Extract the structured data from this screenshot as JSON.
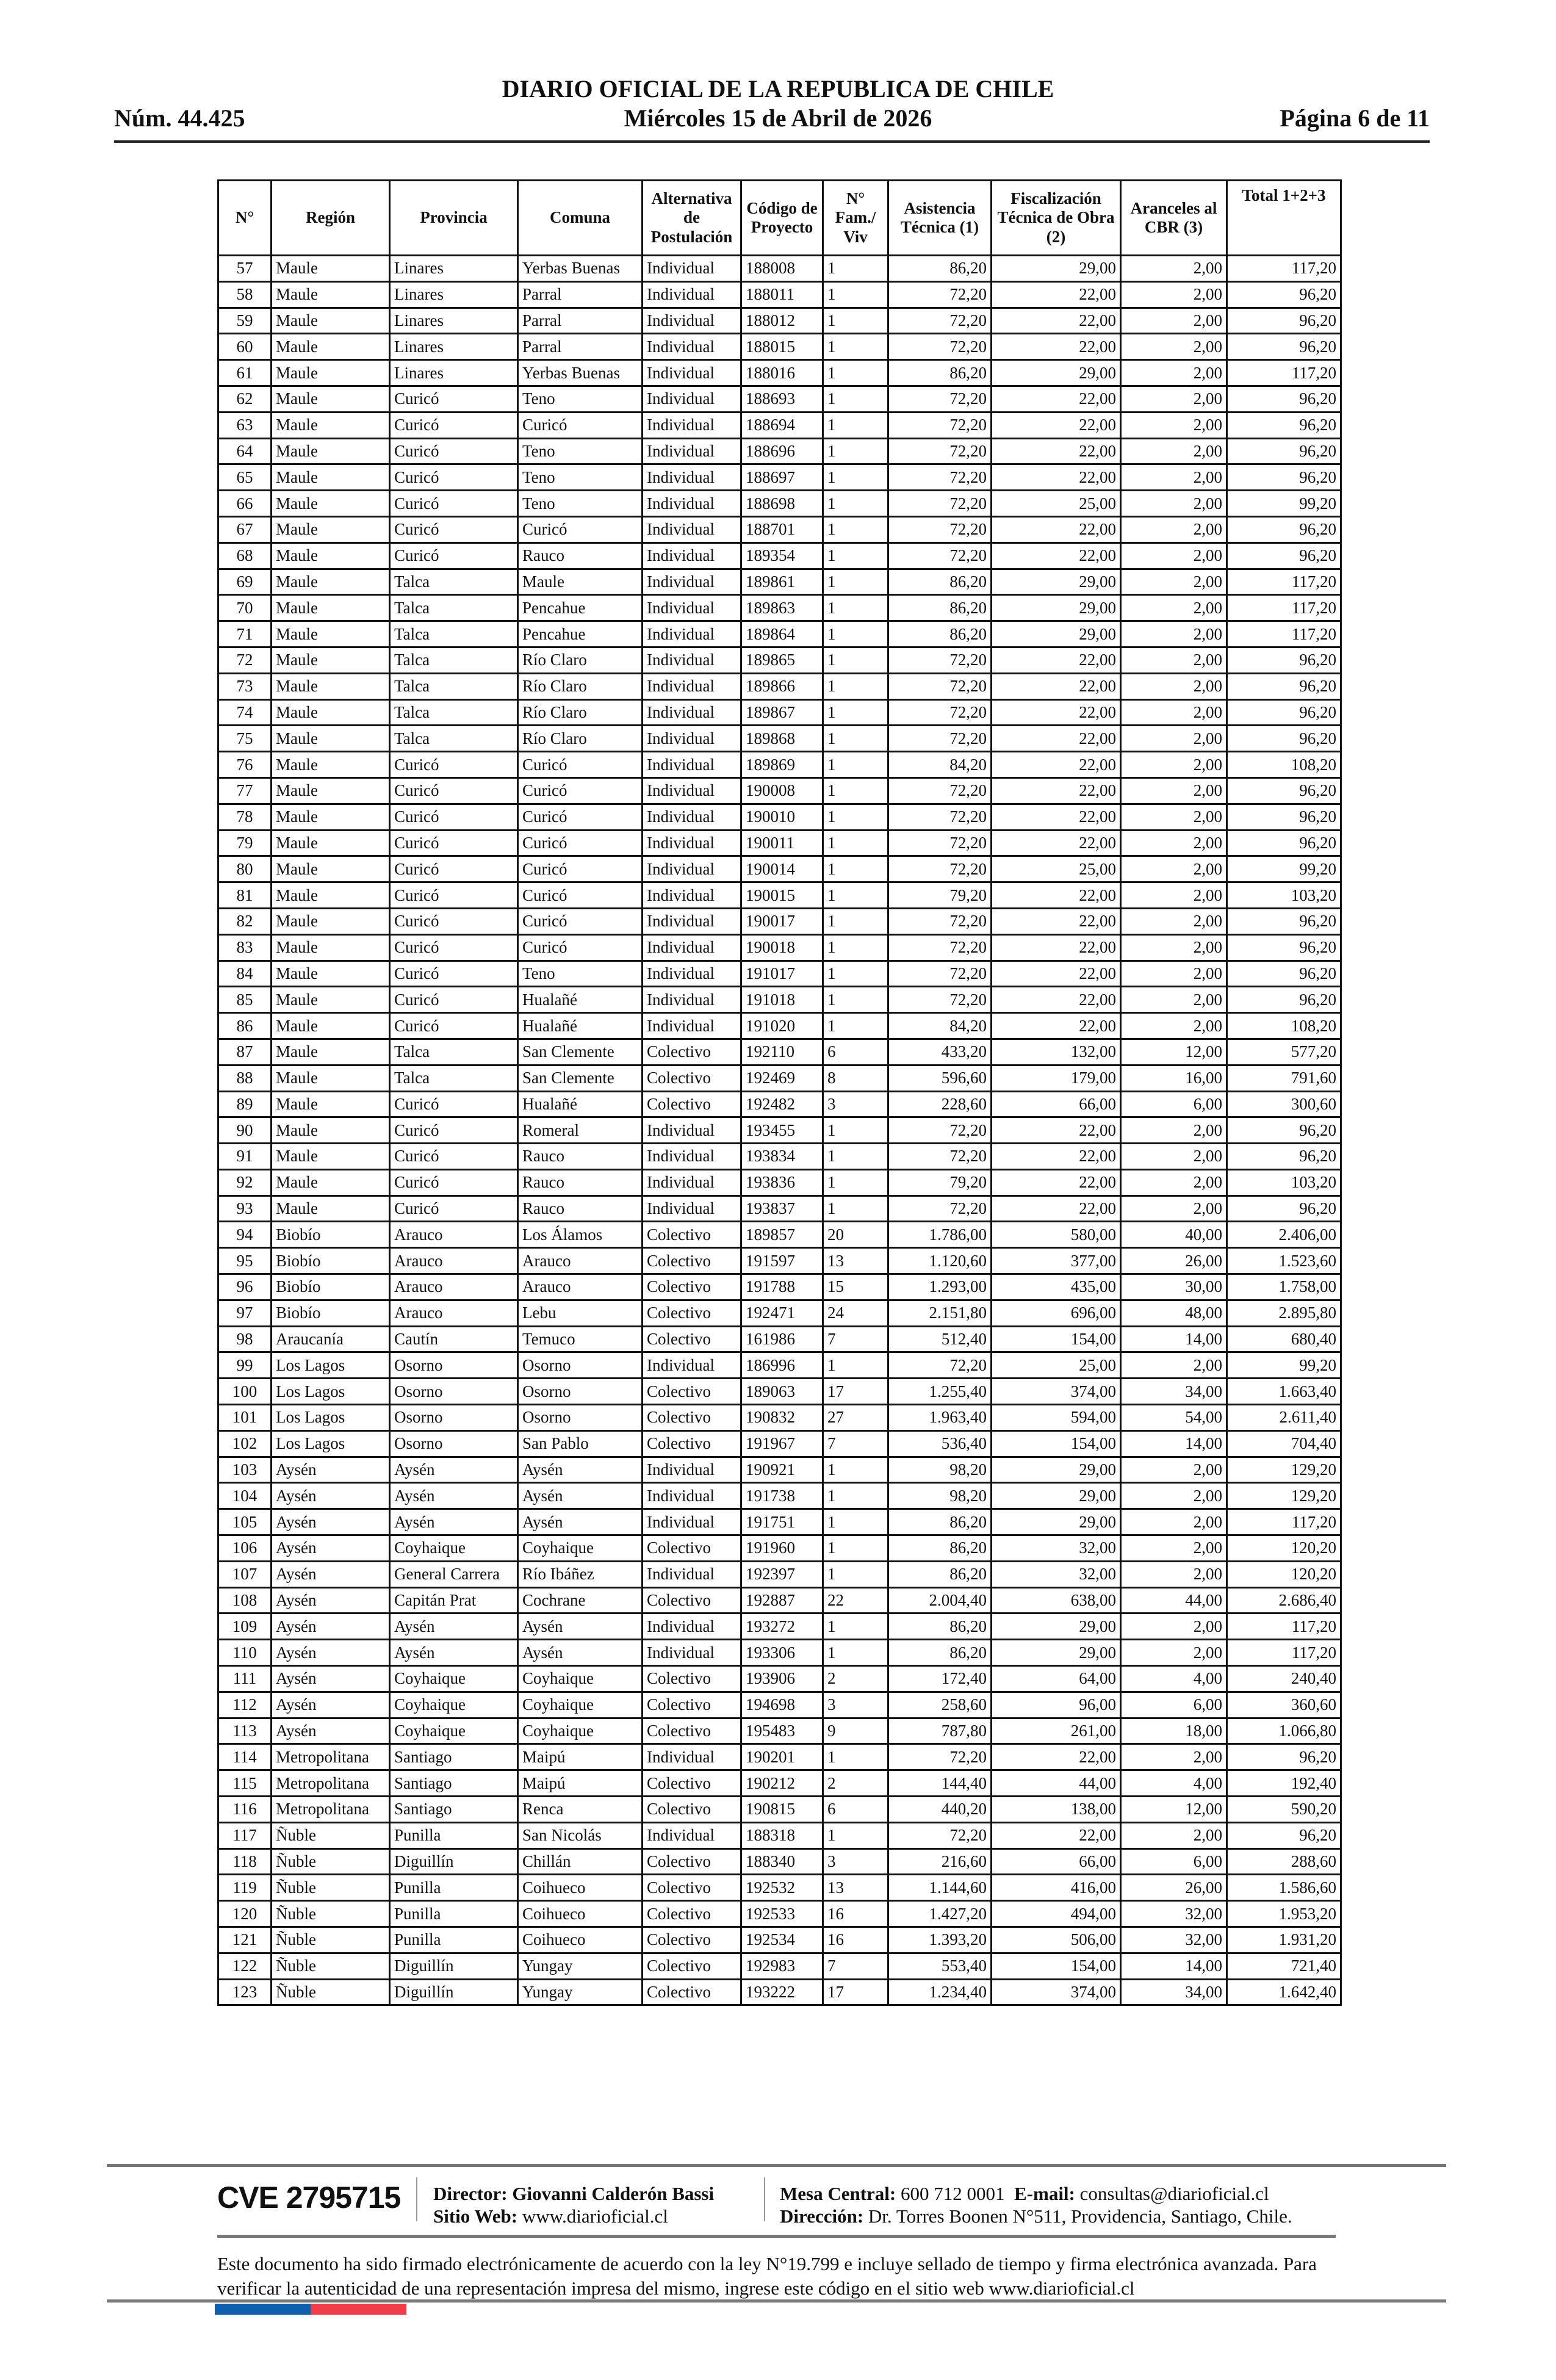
{
  "header": {
    "title": "DIARIO OFICIAL DE LA REPUBLICA DE CHILE",
    "number": "Núm. 44.425",
    "date": "Miércoles 15 de Abril de 2026",
    "page": "Página 6 de 11"
  },
  "table": {
    "columns": [
      "N°",
      "Región",
      "Provincia",
      "Comuna",
      "Alternativa de Postulación",
      "Código de Proyecto",
      "N° Fam./ Viv",
      "Asistencia Técnica (1)",
      "Fiscalización Técnica de Obra (2)",
      "Aranceles al CBR (3)",
      "Total 1+2+3"
    ],
    "rows": [
      [
        "57",
        "Maule",
        "Linares",
        "Yerbas Buenas",
        "Individual",
        "188008",
        "1",
        "86,20",
        "29,00",
        "2,00",
        "117,20"
      ],
      [
        "58",
        "Maule",
        "Linares",
        "Parral",
        "Individual",
        "188011",
        "1",
        "72,20",
        "22,00",
        "2,00",
        "96,20"
      ],
      [
        "59",
        "Maule",
        "Linares",
        "Parral",
        "Individual",
        "188012",
        "1",
        "72,20",
        "22,00",
        "2,00",
        "96,20"
      ],
      [
        "60",
        "Maule",
        "Linares",
        "Parral",
        "Individual",
        "188015",
        "1",
        "72,20",
        "22,00",
        "2,00",
        "96,20"
      ],
      [
        "61",
        "Maule",
        "Linares",
        "Yerbas Buenas",
        "Individual",
        "188016",
        "1",
        "86,20",
        "29,00",
        "2,00",
        "117,20"
      ],
      [
        "62",
        "Maule",
        "Curicó",
        "Teno",
        "Individual",
        "188693",
        "1",
        "72,20",
        "22,00",
        "2,00",
        "96,20"
      ],
      [
        "63",
        "Maule",
        "Curicó",
        "Curicó",
        "Individual",
        "188694",
        "1",
        "72,20",
        "22,00",
        "2,00",
        "96,20"
      ],
      [
        "64",
        "Maule",
        "Curicó",
        "Teno",
        "Individual",
        "188696",
        "1",
        "72,20",
        "22,00",
        "2,00",
        "96,20"
      ],
      [
        "65",
        "Maule",
        "Curicó",
        "Teno",
        "Individual",
        "188697",
        "1",
        "72,20",
        "22,00",
        "2,00",
        "96,20"
      ],
      [
        "66",
        "Maule",
        "Curicó",
        "Teno",
        "Individual",
        "188698",
        "1",
        "72,20",
        "25,00",
        "2,00",
        "99,20"
      ],
      [
        "67",
        "Maule",
        "Curicó",
        "Curicó",
        "Individual",
        "188701",
        "1",
        "72,20",
        "22,00",
        "2,00",
        "96,20"
      ],
      [
        "68",
        "Maule",
        "Curicó",
        "Rauco",
        "Individual",
        "189354",
        "1",
        "72,20",
        "22,00",
        "2,00",
        "96,20"
      ],
      [
        "69",
        "Maule",
        "Talca",
        "Maule",
        "Individual",
        "189861",
        "1",
        "86,20",
        "29,00",
        "2,00",
        "117,20"
      ],
      [
        "70",
        "Maule",
        "Talca",
        "Pencahue",
        "Individual",
        "189863",
        "1",
        "86,20",
        "29,00",
        "2,00",
        "117,20"
      ],
      [
        "71",
        "Maule",
        "Talca",
        "Pencahue",
        "Individual",
        "189864",
        "1",
        "86,20",
        "29,00",
        "2,00",
        "117,20"
      ],
      [
        "72",
        "Maule",
        "Talca",
        "Río Claro",
        "Individual",
        "189865",
        "1",
        "72,20",
        "22,00",
        "2,00",
        "96,20"
      ],
      [
        "73",
        "Maule",
        "Talca",
        "Río Claro",
        "Individual",
        "189866",
        "1",
        "72,20",
        "22,00",
        "2,00",
        "96,20"
      ],
      [
        "74",
        "Maule",
        "Talca",
        "Río Claro",
        "Individual",
        "189867",
        "1",
        "72,20",
        "22,00",
        "2,00",
        "96,20"
      ],
      [
        "75",
        "Maule",
        "Talca",
        "Río Claro",
        "Individual",
        "189868",
        "1",
        "72,20",
        "22,00",
        "2,00",
        "96,20"
      ],
      [
        "76",
        "Maule",
        "Curicó",
        "Curicó",
        "Individual",
        "189869",
        "1",
        "84,20",
        "22,00",
        "2,00",
        "108,20"
      ],
      [
        "77",
        "Maule",
        "Curicó",
        "Curicó",
        "Individual",
        "190008",
        "1",
        "72,20",
        "22,00",
        "2,00",
        "96,20"
      ],
      [
        "78",
        "Maule",
        "Curicó",
        "Curicó",
        "Individual",
        "190010",
        "1",
        "72,20",
        "22,00",
        "2,00",
        "96,20"
      ],
      [
        "79",
        "Maule",
        "Curicó",
        "Curicó",
        "Individual",
        "190011",
        "1",
        "72,20",
        "22,00",
        "2,00",
        "96,20"
      ],
      [
        "80",
        "Maule",
        "Curicó",
        "Curicó",
        "Individual",
        "190014",
        "1",
        "72,20",
        "25,00",
        "2,00",
        "99,20"
      ],
      [
        "81",
        "Maule",
        "Curicó",
        "Curicó",
        "Individual",
        "190015",
        "1",
        "79,20",
        "22,00",
        "2,00",
        "103,20"
      ],
      [
        "82",
        "Maule",
        "Curicó",
        "Curicó",
        "Individual",
        "190017",
        "1",
        "72,20",
        "22,00",
        "2,00",
        "96,20"
      ],
      [
        "83",
        "Maule",
        "Curicó",
        "Curicó",
        "Individual",
        "190018",
        "1",
        "72,20",
        "22,00",
        "2,00",
        "96,20"
      ],
      [
        "84",
        "Maule",
        "Curicó",
        "Teno",
        "Individual",
        "191017",
        "1",
        "72,20",
        "22,00",
        "2,00",
        "96,20"
      ],
      [
        "85",
        "Maule",
        "Curicó",
        "Hualañé",
        "Individual",
        "191018",
        "1",
        "72,20",
        "22,00",
        "2,00",
        "96,20"
      ],
      [
        "86",
        "Maule",
        "Curicó",
        "Hualañé",
        "Individual",
        "191020",
        "1",
        "84,20",
        "22,00",
        "2,00",
        "108,20"
      ],
      [
        "87",
        "Maule",
        "Talca",
        "San Clemente",
        "Colectivo",
        "192110",
        "6",
        "433,20",
        "132,00",
        "12,00",
        "577,20"
      ],
      [
        "88",
        "Maule",
        "Talca",
        "San Clemente",
        "Colectivo",
        "192469",
        "8",
        "596,60",
        "179,00",
        "16,00",
        "791,60"
      ],
      [
        "89",
        "Maule",
        "Curicó",
        "Hualañé",
        "Colectivo",
        "192482",
        "3",
        "228,60",
        "66,00",
        "6,00",
        "300,60"
      ],
      [
        "90",
        "Maule",
        "Curicó",
        "Romeral",
        "Individual",
        "193455",
        "1",
        "72,20",
        "22,00",
        "2,00",
        "96,20"
      ],
      [
        "91",
        "Maule",
        "Curicó",
        "Rauco",
        "Individual",
        "193834",
        "1",
        "72,20",
        "22,00",
        "2,00",
        "96,20"
      ],
      [
        "92",
        "Maule",
        "Curicó",
        "Rauco",
        "Individual",
        "193836",
        "1",
        "79,20",
        "22,00",
        "2,00",
        "103,20"
      ],
      [
        "93",
        "Maule",
        "Curicó",
        "Rauco",
        "Individual",
        "193837",
        "1",
        "72,20",
        "22,00",
        "2,00",
        "96,20"
      ],
      [
        "94",
        "Biobío",
        "Arauco",
        "Los Álamos",
        "Colectivo",
        "189857",
        "20",
        "1.786,00",
        "580,00",
        "40,00",
        "2.406,00"
      ],
      [
        "95",
        "Biobío",
        "Arauco",
        "Arauco",
        "Colectivo",
        "191597",
        "13",
        "1.120,60",
        "377,00",
        "26,00",
        "1.523,60"
      ],
      [
        "96",
        "Biobío",
        "Arauco",
        "Arauco",
        "Colectivo",
        "191788",
        "15",
        "1.293,00",
        "435,00",
        "30,00",
        "1.758,00"
      ],
      [
        "97",
        "Biobío",
        "Arauco",
        "Lebu",
        "Colectivo",
        "192471",
        "24",
        "2.151,80",
        "696,00",
        "48,00",
        "2.895,80"
      ],
      [
        "98",
        "Araucanía",
        "Cautín",
        "Temuco",
        "Colectivo",
        "161986",
        "7",
        "512,40",
        "154,00",
        "14,00",
        "680,40"
      ],
      [
        "99",
        "Los Lagos",
        "Osorno",
        "Osorno",
        "Individual",
        "186996",
        "1",
        "72,20",
        "25,00",
        "2,00",
        "99,20"
      ],
      [
        "100",
        "Los Lagos",
        "Osorno",
        "Osorno",
        "Colectivo",
        "189063",
        "17",
        "1.255,40",
        "374,00",
        "34,00",
        "1.663,40"
      ],
      [
        "101",
        "Los Lagos",
        "Osorno",
        "Osorno",
        "Colectivo",
        "190832",
        "27",
        "1.963,40",
        "594,00",
        "54,00",
        "2.611,40"
      ],
      [
        "102",
        "Los Lagos",
        "Osorno",
        "San Pablo",
        "Colectivo",
        "191967",
        "7",
        "536,40",
        "154,00",
        "14,00",
        "704,40"
      ],
      [
        "103",
        "Aysén",
        "Aysén",
        "Aysén",
        "Individual",
        "190921",
        "1",
        "98,20",
        "29,00",
        "2,00",
        "129,20"
      ],
      [
        "104",
        "Aysén",
        "Aysén",
        "Aysén",
        "Individual",
        "191738",
        "1",
        "98,20",
        "29,00",
        "2,00",
        "129,20"
      ],
      [
        "105",
        "Aysén",
        "Aysén",
        "Aysén",
        "Individual",
        "191751",
        "1",
        "86,20",
        "29,00",
        "2,00",
        "117,20"
      ],
      [
        "106",
        "Aysén",
        "Coyhaique",
        "Coyhaique",
        "Colectivo",
        "191960",
        "1",
        "86,20",
        "32,00",
        "2,00",
        "120,20"
      ],
      [
        "107",
        "Aysén",
        "General Carrera",
        "Río Ibáñez",
        "Individual",
        "192397",
        "1",
        "86,20",
        "32,00",
        "2,00",
        "120,20"
      ],
      [
        "108",
        "Aysén",
        "Capitán Prat",
        "Cochrane",
        "Colectivo",
        "192887",
        "22",
        "2.004,40",
        "638,00",
        "44,00",
        "2.686,40"
      ],
      [
        "109",
        "Aysén",
        "Aysén",
        "Aysén",
        "Individual",
        "193272",
        "1",
        "86,20",
        "29,00",
        "2,00",
        "117,20"
      ],
      [
        "110",
        "Aysén",
        "Aysén",
        "Aysén",
        "Individual",
        "193306",
        "1",
        "86,20",
        "29,00",
        "2,00",
        "117,20"
      ],
      [
        "111",
        "Aysén",
        "Coyhaique",
        "Coyhaique",
        "Colectivo",
        "193906",
        "2",
        "172,40",
        "64,00",
        "4,00",
        "240,40"
      ],
      [
        "112",
        "Aysén",
        "Coyhaique",
        "Coyhaique",
        "Colectivo",
        "194698",
        "3",
        "258,60",
        "96,00",
        "6,00",
        "360,60"
      ],
      [
        "113",
        "Aysén",
        "Coyhaique",
        "Coyhaique",
        "Colectivo",
        "195483",
        "9",
        "787,80",
        "261,00",
        "18,00",
        "1.066,80"
      ],
      [
        "114",
        "Metropolitana",
        "Santiago",
        "Maipú",
        "Individual",
        "190201",
        "1",
        "72,20",
        "22,00",
        "2,00",
        "96,20"
      ],
      [
        "115",
        "Metropolitana",
        "Santiago",
        "Maipú",
        "Colectivo",
        "190212",
        "2",
        "144,40",
        "44,00",
        "4,00",
        "192,40"
      ],
      [
        "116",
        "Metropolitana",
        "Santiago",
        "Renca",
        "Colectivo",
        "190815",
        "6",
        "440,20",
        "138,00",
        "12,00",
        "590,20"
      ],
      [
        "117",
        "Ñuble",
        "Punilla",
        "San Nicolás",
        "Individual",
        "188318",
        "1",
        "72,20",
        "22,00",
        "2,00",
        "96,20"
      ],
      [
        "118",
        "Ñuble",
        "Diguillín",
        "Chillán",
        "Colectivo",
        "188340",
        "3",
        "216,60",
        "66,00",
        "6,00",
        "288,60"
      ],
      [
        "119",
        "Ñuble",
        "Punilla",
        "Coihueco",
        "Colectivo",
        "192532",
        "13",
        "1.144,60",
        "416,00",
        "26,00",
        "1.586,60"
      ],
      [
        "120",
        "Ñuble",
        "Punilla",
        "Coihueco",
        "Colectivo",
        "192533",
        "16",
        "1.427,20",
        "494,00",
        "32,00",
        "1.953,20"
      ],
      [
        "121",
        "Ñuble",
        "Punilla",
        "Coihueco",
        "Colectivo",
        "192534",
        "16",
        "1.393,20",
        "506,00",
        "32,00",
        "1.931,20"
      ],
      [
        "122",
        "Ñuble",
        "Diguillín",
        "Yungay",
        "Colectivo",
        "192983",
        "7",
        "553,40",
        "154,00",
        "14,00",
        "721,40"
      ],
      [
        "123",
        "Ñuble",
        "Diguillín",
        "Yungay",
        "Colectivo",
        "193222",
        "17",
        "1.234,40",
        "374,00",
        "34,00",
        "1.642,40"
      ]
    ]
  },
  "footer": {
    "cve": "CVE 2795715",
    "director_label": "Director:",
    "director_value": "Giovanni Calderón Bassi",
    "web_label": "Sitio Web:",
    "web_value": "www.diarioficial.cl",
    "mesa_label": "Mesa Central:",
    "mesa_value": "600 712 0001",
    "email_label": "E-mail:",
    "email_value": "consultas@diarioficial.cl",
    "address_label": "Dirección:",
    "address_value": "Dr. Torres Boonen N°511, Providencia, Santiago, Chile.",
    "legal": "Este documento ha sido firmado electrónicamente de acuerdo con la ley N°19.799 e incluye sellado de tiempo y firma electrónica avanzada. Para verificar la autenticidad de una representación impresa del mismo, ingrese este código en el sitio web www.diarioficial.cl"
  },
  "colors": {
    "flag_blue": "#0f5fad",
    "flag_red": "#ef3e4a"
  }
}
